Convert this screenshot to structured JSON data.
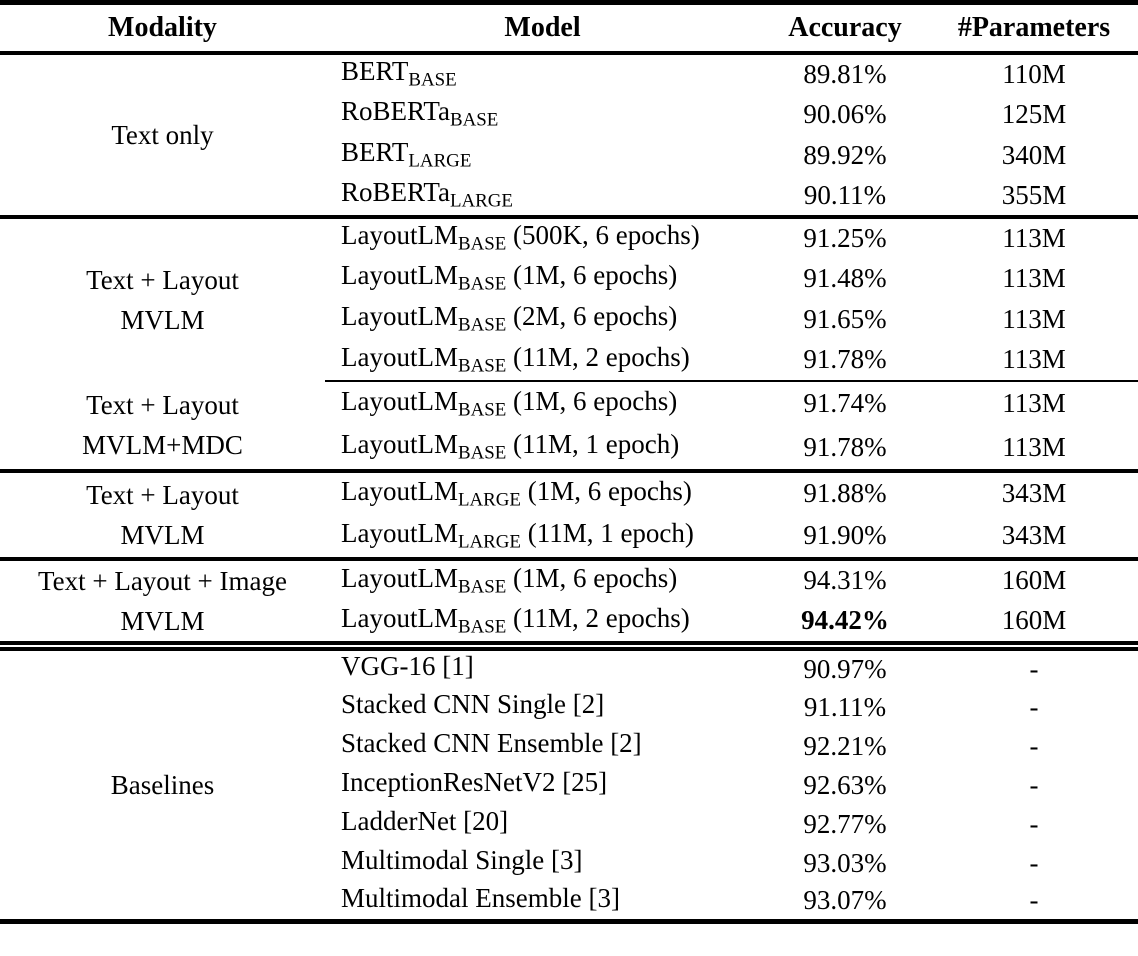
{
  "table": {
    "headers": [
      "Modality",
      "Model",
      "Accuracy",
      "#Parameters"
    ],
    "accent_color": "#000000",
    "background_color": "#ffffff",
    "sections": [
      {
        "modality": [
          "Text only"
        ],
        "rows": [
          {
            "model": "BERT",
            "sub": "BASE",
            "suffix": "",
            "accuracy": "89.81%",
            "params": "110M"
          },
          {
            "model": "RoBERTa",
            "sub": "BASE",
            "suffix": "",
            "accuracy": "90.06%",
            "params": "125M"
          },
          {
            "model": "BERT",
            "sub": "LARGE",
            "suffix": "",
            "accuracy": "89.92%",
            "params": "340M"
          },
          {
            "model": "RoBERTa",
            "sub": "LARGE",
            "suffix": "",
            "accuracy": "90.11%",
            "params": "355M"
          }
        ]
      },
      {
        "modality": [
          "Text + Layout",
          "MVLM"
        ],
        "rows": [
          {
            "model": "LayoutLM",
            "sub": "BASE",
            "suffix": " (500K, 6 epochs)",
            "accuracy": "91.25%",
            "params": "113M"
          },
          {
            "model": "LayoutLM",
            "sub": "BASE",
            "suffix": " (1M, 6 epochs)",
            "accuracy": "91.48%",
            "params": "113M"
          },
          {
            "model": "LayoutLM",
            "sub": "BASE",
            "suffix": " (2M, 6 epochs)",
            "accuracy": "91.65%",
            "params": "113M"
          },
          {
            "model": "LayoutLM",
            "sub": "BASE",
            "suffix": " (11M, 2 epochs)",
            "accuracy": "91.78%",
            "params": "113M"
          }
        ]
      },
      {
        "modality": [
          "Text + Layout",
          "MVLM+MDC"
        ],
        "rows": [
          {
            "model": "LayoutLM",
            "sub": "BASE",
            "suffix": " (1M, 6 epochs)",
            "accuracy": "91.74%",
            "params": "113M"
          },
          {
            "model": "LayoutLM",
            "sub": "BASE",
            "suffix": " (11M, 1 epoch)",
            "accuracy": "91.78%",
            "params": "113M"
          }
        ]
      },
      {
        "modality": [
          "Text + Layout",
          "MVLM"
        ],
        "rows": [
          {
            "model": "LayoutLM",
            "sub": "LARGE",
            "suffix": " (1M, 6 epochs)",
            "accuracy": "91.88%",
            "params": "343M"
          },
          {
            "model": "LayoutLM",
            "sub": "LARGE",
            "suffix": " (11M, 1 epoch)",
            "accuracy": "91.90%",
            "params": "343M"
          }
        ]
      },
      {
        "modality": [
          "Text + Layout + Image",
          "MVLM"
        ],
        "rows": [
          {
            "model": "LayoutLM",
            "sub": "BASE",
            "suffix": " (1M, 6 epochs)",
            "accuracy": "94.31%",
            "params": "160M"
          },
          {
            "model": "LayoutLM",
            "sub": "BASE",
            "suffix": " (11M, 2 epochs)",
            "accuracy": "94.42%",
            "params": "160M",
            "accuracy_bold": true
          }
        ]
      },
      {
        "modality": [
          "Baselines"
        ],
        "rows": [
          {
            "model": "VGG-16 [1]",
            "sub": "",
            "suffix": "",
            "accuracy": "90.97%",
            "params": "-"
          },
          {
            "model": "Stacked CNN Single [2]",
            "sub": "",
            "suffix": "",
            "accuracy": "91.11%",
            "params": "-"
          },
          {
            "model": "Stacked CNN Ensemble [2]",
            "sub": "",
            "suffix": "",
            "accuracy": "92.21%",
            "params": "-"
          },
          {
            "model": "InceptionResNetV2 [25]",
            "sub": "",
            "suffix": "",
            "accuracy": "92.63%",
            "params": "-"
          },
          {
            "model": "LadderNet [20]",
            "sub": "",
            "suffix": "",
            "accuracy": "92.77%",
            "params": "-"
          },
          {
            "model": "Multimodal Single [3]",
            "sub": "",
            "suffix": "",
            "accuracy": "93.03%",
            "params": "-"
          },
          {
            "model": "Multimodal Ensemble [3]",
            "sub": "",
            "suffix": "",
            "accuracy": "93.07%",
            "params": "-"
          }
        ]
      }
    ]
  }
}
